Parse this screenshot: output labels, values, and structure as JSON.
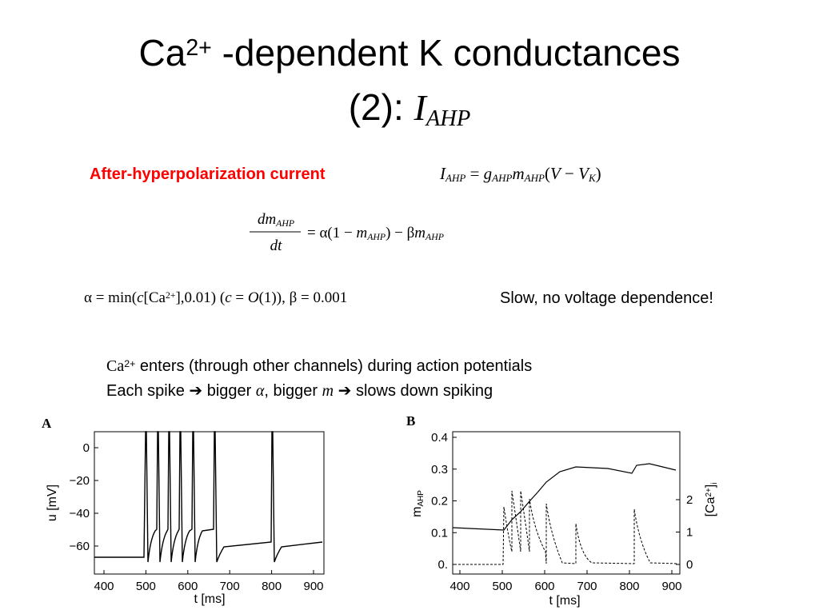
{
  "title": {
    "line1": [
      {
        "t": "Ca"
      },
      {
        "t": "2+",
        "sup": true
      },
      {
        "t": " -dependent K conductances"
      }
    ],
    "line2": [
      {
        "t": "(2): "
      },
      {
        "t": "I",
        "i": true,
        "serif": true
      },
      {
        "t": "AHP",
        "i": true,
        "serif": true,
        "sub": true
      }
    ]
  },
  "current_label": "After-hyperpolarization current",
  "eq1": [
    {
      "t": "I",
      "i": true
    },
    {
      "t": "AHP",
      "i": true,
      "sub": true
    },
    {
      "t": " = "
    },
    {
      "t": "g",
      "i": true
    },
    {
      "t": "AHP",
      "i": true,
      "sub": true
    },
    {
      "t": "m",
      "i": true
    },
    {
      "t": "AHP",
      "i": true,
      "sub": true
    },
    {
      "t": "("
    },
    {
      "t": "V",
      "i": true
    },
    {
      "t": " − "
    },
    {
      "t": "V",
      "i": true
    },
    {
      "t": "K",
      "i": true,
      "sub": true
    },
    {
      "t": ")"
    }
  ],
  "eq2": {
    "numerator": [
      {
        "t": "dm",
        "i": true
      },
      {
        "t": "AHP",
        "i": true,
        "sub": true
      }
    ],
    "denominator": [
      {
        "t": "dt",
        "i": true
      }
    ],
    "rhs": [
      {
        "t": "= α(1 − "
      },
      {
        "t": "m",
        "i": true
      },
      {
        "t": "AHP",
        "i": true,
        "sub": true
      },
      {
        "t": ") − β"
      },
      {
        "t": "m",
        "i": true
      },
      {
        "t": "AHP",
        "i": true,
        "sub": true
      }
    ]
  },
  "eq3": [
    {
      "t": "α = min("
    },
    {
      "t": "c",
      "i": true
    },
    {
      "t": "[Ca"
    },
    {
      "t": "2+",
      "sup": true
    },
    {
      "t": "],0.01)    ("
    },
    {
      "t": "c",
      "i": true
    },
    {
      "t": " = "
    },
    {
      "t": "O",
      "i": true
    },
    {
      "t": "(1)),    β = 0.001"
    }
  ],
  "note": "Slow, no voltage dependence!",
  "bullets": [
    [
      {
        "t": "Ca",
        "serif": true
      },
      {
        "t": "2+",
        "sup": true
      },
      {
        "t": " enters (through other channels) during action potentials"
      }
    ],
    [
      {
        "t": "Each spike ➔ bigger "
      },
      {
        "t": "α",
        "i": true,
        "serif": true
      },
      {
        "t": ", bigger "
      },
      {
        "t": "m",
        "i": true,
        "serif": true
      },
      {
        "t": " ➔ slows down spiking"
      }
    ]
  ],
  "panel_a": {
    "label": "A",
    "ylabel": "u  [mV]",
    "xlabel": "t  [ms]",
    "yticks": [
      0,
      {
        "value": -20,
        "label": "−20"
      },
      {
        "value": -40,
        "label": "−40"
      },
      {
        "value": -60,
        "label": "−60"
      }
    ],
    "xticks": [
      400,
      500,
      600,
      700,
      800,
      900
    ]
  },
  "panel_b": {
    "label": "B",
    "ylabel": [
      {
        "t": "m"
      },
      {
        "t": "AHP",
        "sub": true
      }
    ],
    "y2label": [
      {
        "t": "[Ca"
      },
      {
        "t": "2+",
        "sup": true
      },
      {
        "t": "]"
      },
      {
        "t": "i",
        "sub": true
      }
    ],
    "xlabel": "t  [ms]",
    "yticks": [
      {
        "value": 0,
        "label": "0."
      },
      0.1,
      0.2,
      0.3,
      0.4
    ],
    "y2ticks": [
      0,
      1,
      2
    ],
    "xticks": [
      400,
      500,
      600,
      700,
      800,
      900
    ]
  }
}
